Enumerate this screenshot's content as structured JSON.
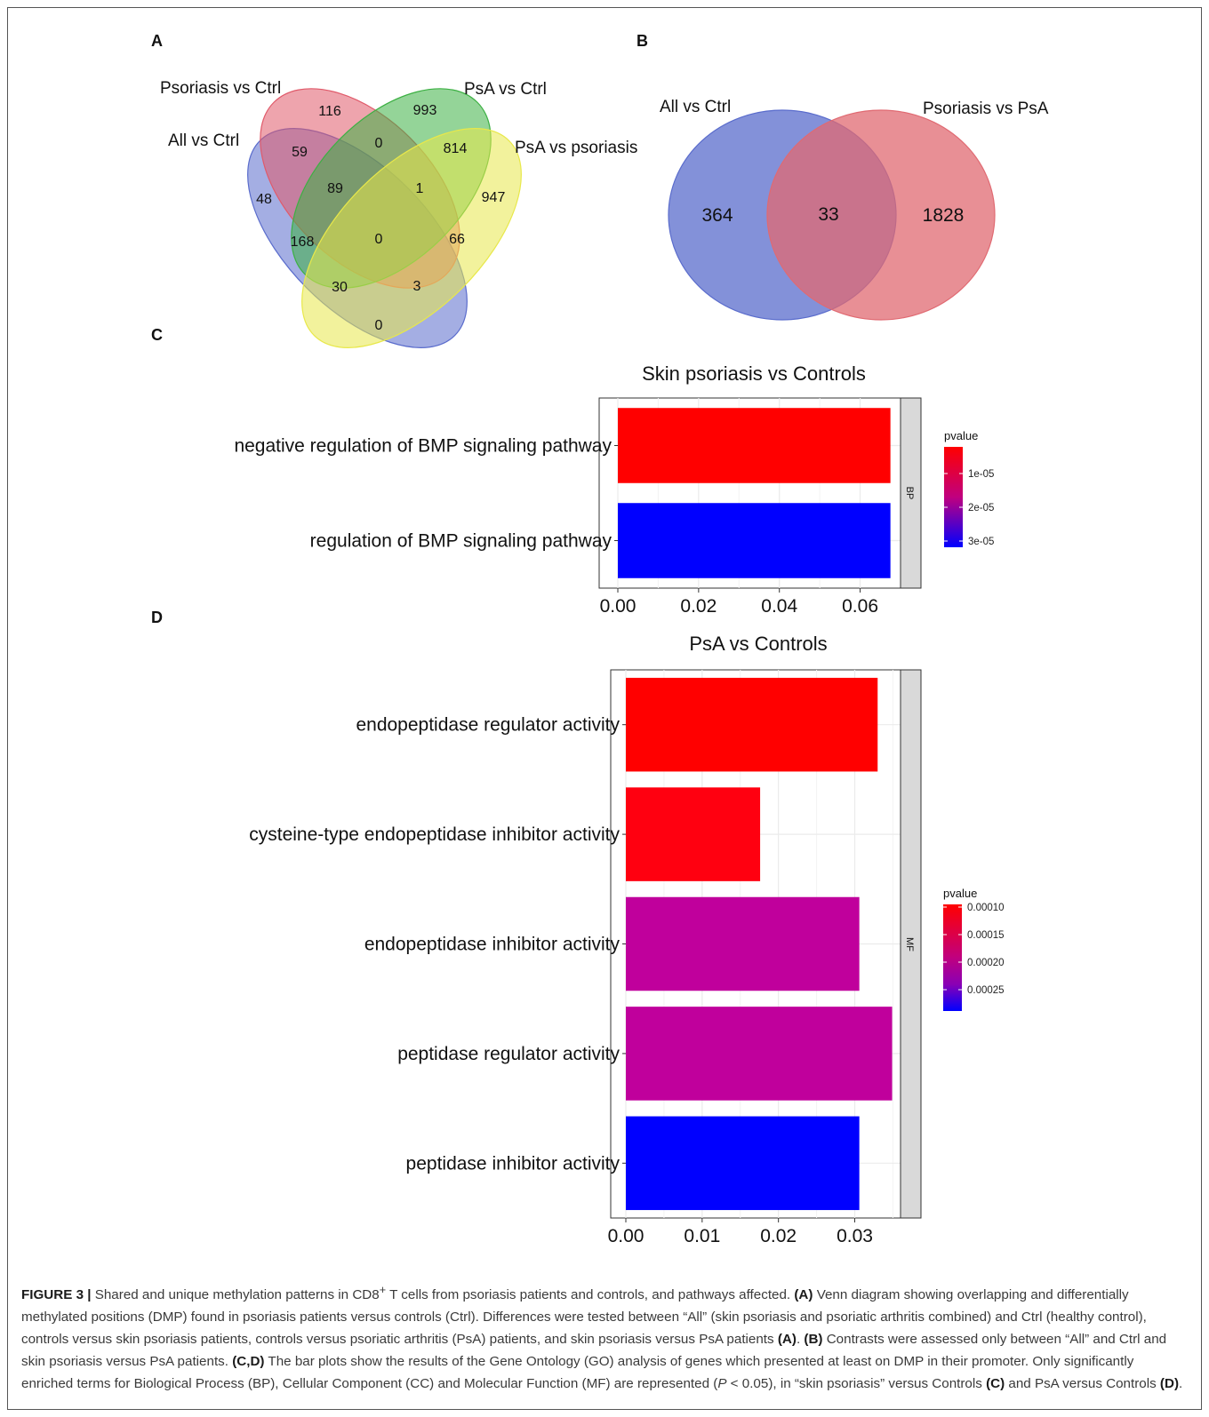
{
  "panels": {
    "A": "A",
    "B": "B",
    "C": "C",
    "D": "D"
  },
  "venn4": {
    "set_labels": [
      "Psoriasis vs Ctrl",
      "PsA vs Ctrl",
      "All vs Ctrl",
      "PsA vs psoriasis"
    ],
    "colors": {
      "psoriasis_vs_ctrl": "#e05a6a",
      "psa_vs_ctrl": "#3cb043",
      "all_vs_ctrl": "#5a6ccc",
      "psa_vs_psoriasis": "#e8e84a"
    },
    "counts": [
      {
        "name": "count-116",
        "value": "116"
      },
      {
        "name": "count-993",
        "value": "993"
      },
      {
        "name": "count-59",
        "value": "59"
      },
      {
        "name": "count-0-a",
        "value": "0"
      },
      {
        "name": "count-814",
        "value": "814"
      },
      {
        "name": "count-89",
        "value": "89"
      },
      {
        "name": "count-1",
        "value": "1"
      },
      {
        "name": "count-48",
        "value": "48"
      },
      {
        "name": "count-947",
        "value": "947"
      },
      {
        "name": "count-168",
        "value": "168"
      },
      {
        "name": "count-0-b",
        "value": "0"
      },
      {
        "name": "count-66",
        "value": "66"
      },
      {
        "name": "count-30",
        "value": "30"
      },
      {
        "name": "count-3",
        "value": "3"
      },
      {
        "name": "count-0-c",
        "value": "0"
      }
    ]
  },
  "venn2": {
    "set_labels": [
      "All vs Ctrl",
      "Psoriasis vs PsA"
    ],
    "colors": {
      "left": "#5a6ccc",
      "right": "#e06a72",
      "overlap": "#a8546e"
    },
    "left_only": "364",
    "overlap": "33",
    "right_only": "1828"
  },
  "chart_data": [
    {
      "type": "bar",
      "orientation": "horizontal",
      "title": "Skin psoriasis vs Controls",
      "facet_label": "BP",
      "categories": [
        "negative regulation of BMP signaling pathway",
        "regulation of BMP signaling pathway"
      ],
      "values": [
        0.0675,
        0.0675
      ],
      "bar_colors": [
        "#ff0000",
        "#0000ff"
      ],
      "xlim": [
        0,
        0.07
      ],
      "xticks": [
        0.0,
        0.02,
        0.04,
        0.06
      ],
      "xtick_labels": [
        "0.00",
        "0.02",
        "0.04",
        "0.06"
      ],
      "legend": {
        "title": "pvalue",
        "position": "right",
        "labels": [
          "1e-05",
          "2e-05",
          "3e-05"
        ],
        "gradient": [
          "#ff0000",
          "#c0007f",
          "#0000ff"
        ]
      }
    },
    {
      "type": "bar",
      "orientation": "horizontal",
      "title": "PsA vs Controls",
      "facet_label": "MF",
      "categories": [
        "endopeptidase regulator activity",
        "cysteine-type endopeptidase inhibitor activity",
        "endopeptidase inhibitor activity",
        "peptidase regulator activity",
        "peptidase inhibitor activity"
      ],
      "values": [
        0.033,
        0.0176,
        0.0306,
        0.0349,
        0.0306
      ],
      "bar_colors": [
        "#ff0000",
        "#ff0010",
        "#c0009c",
        "#c0009c",
        "#0000ff"
      ],
      "xlim": [
        0,
        0.036
      ],
      "xticks": [
        0.0,
        0.01,
        0.02,
        0.03
      ],
      "xtick_labels": [
        "0.00",
        "0.01",
        "0.02",
        "0.03"
      ],
      "legend": {
        "title": "pvalue",
        "position": "right",
        "labels": [
          "0.00010",
          "0.00015",
          "0.00020",
          "0.00025"
        ],
        "gradient": [
          "#ff0000",
          "#e00040",
          "#c0007f",
          "#8a00b5",
          "#0000ff"
        ]
      }
    }
  ],
  "caption": {
    "figure_label": "FIGURE 3 |",
    "s1": " Shared and unique methylation patterns in CD8",
    "sup": "+",
    "s2": " T cells from psoriasis patients and controls, and pathways affected. ",
    "refA1": "(A)",
    "s3": " Venn diagram showing overlapping and differentially methylated positions (DMP) found in psoriasis patients versus controls (Ctrl). Differences were tested between “All” (skin psoriasis and psoriatic arthritis combined) and Ctrl (healthy control), controls versus skin psoriasis patients, controls versus psoriatic arthritis (PsA) patients, and skin psoriasis versus PsA patients ",
    "refA2": "(A)",
    "s4": ". ",
    "refB": "(B)",
    "s5": " Contrasts were assessed only between “All” and Ctrl and skin psoriasis versus PsA patients. ",
    "refCD": "(C,D)",
    "s6": " The bar plots show the results of the Gene Ontology (GO) analysis of genes which presented at least on DMP in their promoter. Only significantly enriched terms for Biological Process (BP), Cellular Component (CC) and Molecular Function (MF) are represented (",
    "p": "P",
    "s7": " < 0.05), in “skin psoriasis” versus Controls ",
    "refC": "(C)",
    "s8": " and PsA versus Controls ",
    "refD": "(D)",
    "s9": "."
  }
}
